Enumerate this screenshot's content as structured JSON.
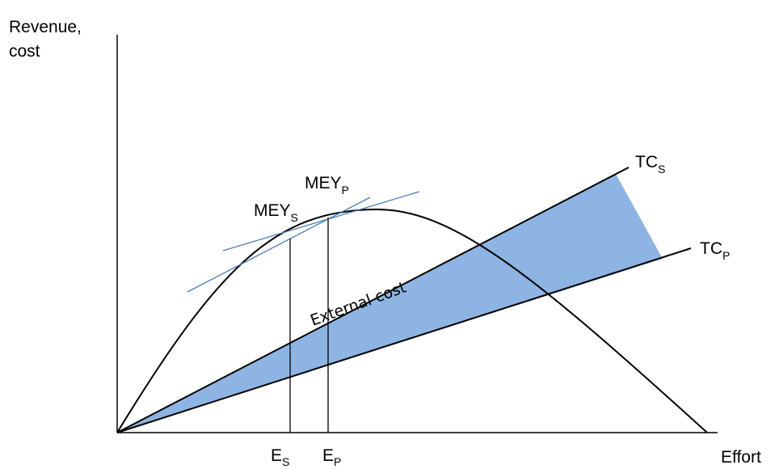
{
  "axes": {
    "y_label_line1": "Revenue,",
    "y_label_line2": "cost",
    "x_label": "Effort"
  },
  "labels": {
    "tc_s": {
      "main": "TC",
      "sub": "S"
    },
    "tc_p": {
      "main": "TC",
      "sub": "P"
    },
    "mey_s": {
      "main": "MEY",
      "sub": "S"
    },
    "mey_p": {
      "main": "MEY",
      "sub": "P"
    },
    "e_s": {
      "main": "E",
      "sub": "S"
    },
    "e_p": {
      "main": "E",
      "sub": "P"
    },
    "external_cost": "External cost"
  },
  "colors": {
    "external_cost_fill": "#8eb4e3",
    "tangent_line": "#4a7ebb",
    "curve": "#000000"
  }
}
